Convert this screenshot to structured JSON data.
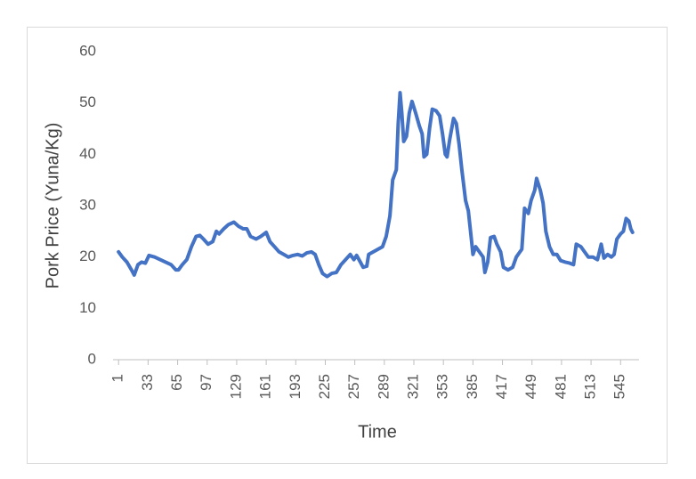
{
  "chart_data": {
    "type": "line",
    "x_label": "Time",
    "y_label": "Pork Price (Yuna/Kg)",
    "color": "#4472c4",
    "grid": false,
    "x": [
      1,
      5,
      10,
      15,
      18,
      22,
      26,
      30,
      34,
      40,
      46,
      52,
      58,
      63,
      66,
      70,
      75,
      80,
      85,
      89,
      93,
      98,
      103,
      107,
      110,
      115,
      120,
      126,
      131,
      136,
      140,
      144,
      150,
      155,
      161,
      165,
      170,
      175,
      180,
      185,
      190,
      195,
      200,
      205,
      210,
      214,
      218,
      222,
      227,
      232,
      237,
      242,
      247,
      252,
      256,
      259,
      263,
      266,
      270,
      272,
      277,
      282,
      287,
      291,
      295,
      298,
      302,
      304,
      306,
      308,
      310,
      313,
      316,
      319,
      323,
      327,
      330,
      332,
      335,
      338,
      341,
      345,
      349,
      352,
      355,
      357,
      360,
      364,
      367,
      370,
      373,
      377,
      380,
      383,
      385,
      388,
      392,
      396,
      398,
      401,
      404,
      408,
      411,
      415,
      418,
      423,
      428,
      432,
      436,
      438,
      441,
      445,
      448,
      452,
      454,
      458,
      461,
      464,
      468,
      472,
      476,
      480,
      485,
      490,
      494,
      497,
      502,
      506,
      510,
      515,
      520,
      524,
      527,
      531,
      535,
      538,
      541,
      545,
      548,
      551,
      554,
      556,
      558
    ],
    "values": [
      21,
      20,
      19,
      17.5,
      16.5,
      18.5,
      19,
      18.8,
      20.3,
      20,
      19.5,
      19,
      18.5,
      17.5,
      17.5,
      18.5,
      19.5,
      22,
      24,
      24.2,
      23.5,
      22.5,
      23,
      25,
      24.5,
      25.5,
      26.3,
      26.8,
      26,
      25.5,
      25.5,
      24,
      23.5,
      24,
      24.8,
      23,
      22,
      21,
      20.5,
      20,
      20.3,
      20.5,
      20.2,
      20.8,
      21,
      20.5,
      18.5,
      16.8,
      16.2,
      16.8,
      17,
      18.5,
      19.5,
      20.5,
      19.5,
      20.3,
      19,
      18,
      18.2,
      20.5,
      21,
      21.5,
      22,
      24,
      28,
      35,
      37,
      46,
      52,
      48,
      42.5,
      43.5,
      48,
      50.3,
      48,
      45.5,
      44,
      39.5,
      40,
      45,
      48.8,
      48.5,
      47.5,
      44,
      40,
      39.5,
      43,
      47,
      46,
      42,
      37,
      31,
      29,
      24,
      20.5,
      22,
      21,
      20,
      17,
      19,
      23.8,
      24,
      22.5,
      21,
      18,
      17.5,
      18,
      20,
      21,
      21.5,
      29.5,
      28.5,
      31,
      33,
      35.3,
      33,
      30.5,
      25,
      22,
      20.5,
      20.5,
      19.3,
      19,
      18.8,
      18.5,
      22.5,
      22,
      21,
      20,
      20,
      19.5,
      22.5,
      19.8,
      20.5,
      20,
      20.5,
      23.5,
      24.5,
      25,
      27.5,
      27,
      25.5,
      24.8
    ],
    "xlim": [
      -5,
      565
    ],
    "xticks": [
      1,
      33,
      65,
      97,
      129,
      161,
      193,
      225,
      257,
      289,
      321,
      353,
      385,
      417,
      449,
      481,
      513,
      545
    ],
    "ylim": [
      0,
      60
    ],
    "yticks": [
      0,
      10,
      20,
      30,
      40,
      50,
      60
    ]
  }
}
